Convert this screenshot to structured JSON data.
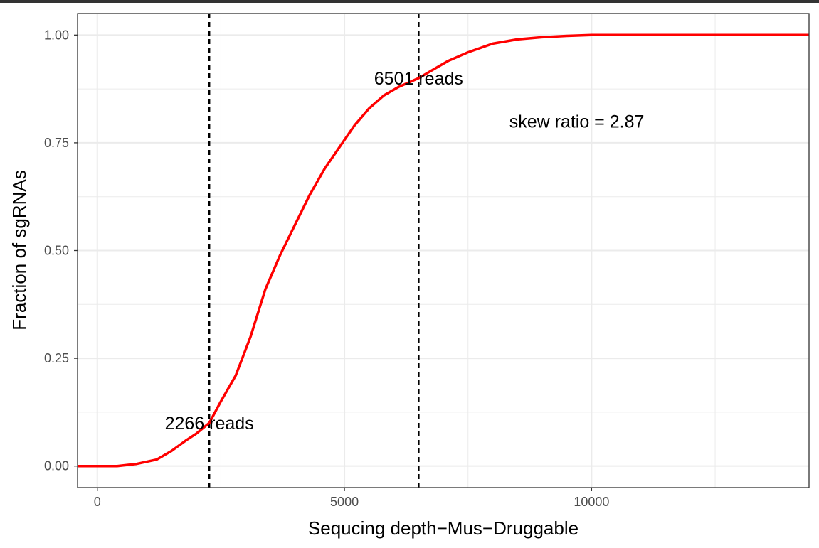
{
  "chart_data": {
    "type": "line",
    "xlabel": "Sequcing depth−Mus−Druggable",
    "ylabel": "Fraction of sgRNAs",
    "xlim": [
      -400,
      14400
    ],
    "ylim": [
      -0.05,
      1.05
    ],
    "x_ticks": [
      0,
      5000,
      10000
    ],
    "x_tick_labels": [
      "0",
      "5000",
      "10000"
    ],
    "y_ticks": [
      0,
      0.25,
      0.5,
      0.75,
      1.0
    ],
    "y_tick_labels": [
      "0.00",
      "0.25",
      "0.50",
      "0.75",
      "1.00"
    ],
    "grid": true,
    "series": [
      {
        "color": "#ff0000",
        "x": [
          -400,
          0,
          400,
          800,
          1200,
          1500,
          1800,
          2000,
          2266,
          2500,
          2800,
          3100,
          3400,
          3700,
          4000,
          4300,
          4600,
          4900,
          5200,
          5500,
          5800,
          6100,
          6501,
          6800,
          7100,
          7500,
          8000,
          8500,
          9000,
          9500,
          10000,
          11000,
          12000,
          13000,
          14400
        ],
        "y": [
          0.0,
          0.0,
          0.0,
          0.005,
          0.015,
          0.035,
          0.06,
          0.075,
          0.1,
          0.15,
          0.21,
          0.3,
          0.41,
          0.49,
          0.56,
          0.63,
          0.69,
          0.74,
          0.79,
          0.83,
          0.86,
          0.88,
          0.9,
          0.92,
          0.94,
          0.96,
          0.98,
          0.99,
          0.995,
          0.998,
          1.0,
          1.0,
          1.0,
          1.0,
          1.0
        ]
      }
    ],
    "vlines": [
      {
        "x": 2266,
        "style": "dashed",
        "color": "#000000"
      },
      {
        "x": 6501,
        "style": "dashed",
        "color": "#000000"
      }
    ],
    "annotations": [
      {
        "text": "2266 reads",
        "x": 2266,
        "y": 0.1
      },
      {
        "text": "6501 reads",
        "x": 6501,
        "y": 0.9
      },
      {
        "text": "skew ratio = 2.87",
        "x": 9700,
        "y": 0.8
      }
    ]
  }
}
